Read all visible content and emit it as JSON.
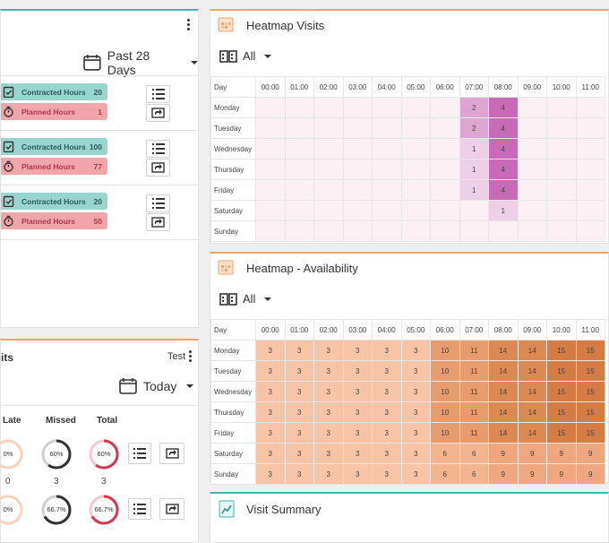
{
  "hours_card": {
    "period": "Past 28 Days",
    "rows": [
      {
        "contracted_label": "Contracted Hours",
        "contracted_value": "20",
        "planned_label": "Planned Hours",
        "planned_value": "1"
      },
      {
        "contracted_label": "Contracted Hours",
        "contracted_value": "100",
        "planned_label": "Planned Hours",
        "planned_value": "77"
      },
      {
        "contracted_label": "Contracted Hours",
        "contracted_value": "20",
        "planned_label": "Planned Hours",
        "planned_value": "50"
      }
    ]
  },
  "visits_card": {
    "title_fragment": "its",
    "menu_label": "Test",
    "period": "Today",
    "columns": [
      "Late",
      "Missed",
      "Total"
    ],
    "rows": [
      {
        "late": "0%",
        "missed": "60%",
        "total": "60%",
        "late_count": "0",
        "missed_count": "3",
        "total_count": "3",
        "late_fraction": 0.0,
        "missed_fraction": 0.6,
        "total_fraction": 0.6
      },
      {
        "late": "0%",
        "missed": "66.7%",
        "total": "66.7%",
        "late_fraction": 0.0,
        "missed_fraction": 0.667,
        "total_fraction": 0.667
      }
    ]
  },
  "heatmap_visits": {
    "title": "Heatmap Visits",
    "filter": "All",
    "day_header": "Day",
    "hours": [
      "00:00",
      "01:00",
      "02:00",
      "03:00",
      "04:00",
      "05:00",
      "06:00",
      "07:00",
      "08:00",
      "09:00",
      "10:00",
      "11:00"
    ],
    "days": [
      "Monday",
      "Tuesday",
      "Wednesday",
      "Thursday",
      "Friday",
      "Saturday",
      "Sunday"
    ],
    "values": [
      [
        "",
        "",
        "",
        "",
        "",
        "",
        "",
        "2",
        "4",
        "",
        "",
        ""
      ],
      [
        "",
        "",
        "",
        "",
        "",
        "",
        "",
        "2",
        "4",
        "",
        "",
        ""
      ],
      [
        "",
        "",
        "",
        "",
        "",
        "",
        "",
        "1",
        "4",
        "",
        "",
        ""
      ],
      [
        "",
        "",
        "",
        "",
        "",
        "",
        "",
        "1",
        "4",
        "",
        "",
        ""
      ],
      [
        "",
        "",
        "",
        "",
        "",
        "",
        "",
        "1",
        "4",
        "",
        "",
        ""
      ],
      [
        "",
        "",
        "",
        "",
        "",
        "",
        "",
        "",
        "1",
        "",
        "",
        ""
      ],
      [
        "",
        "",
        "",
        "",
        "",
        "",
        "",
        "",
        "",
        "",
        "",
        ""
      ]
    ]
  },
  "heatmap_availability": {
    "title": "Heatmap - Availability",
    "filter": "All",
    "day_header": "Day",
    "hours": [
      "00:00",
      "01:00",
      "02:00",
      "03:00",
      "04:00",
      "05:00",
      "06:00",
      "07:00",
      "08:00",
      "09:00",
      "10:00",
      "11:00"
    ],
    "days": [
      "Monday",
      "Tuesday",
      "Wednesday",
      "Thursday",
      "Friday",
      "Saturday",
      "Sunday"
    ],
    "values": [
      [
        "3",
        "3",
        "3",
        "3",
        "3",
        "3",
        "10",
        "11",
        "14",
        "14",
        "15",
        "15"
      ],
      [
        "3",
        "3",
        "3",
        "3",
        "3",
        "3",
        "10",
        "11",
        "14",
        "14",
        "15",
        "15"
      ],
      [
        "3",
        "3",
        "3",
        "3",
        "3",
        "3",
        "10",
        "11",
        "14",
        "14",
        "15",
        "15"
      ],
      [
        "3",
        "3",
        "3",
        "3",
        "3",
        "3",
        "10",
        "11",
        "14",
        "14",
        "15",
        "15"
      ],
      [
        "3",
        "3",
        "3",
        "3",
        "3",
        "3",
        "10",
        "11",
        "14",
        "14",
        "15",
        "15"
      ],
      [
        "3",
        "3",
        "3",
        "3",
        "3",
        "3",
        "6",
        "6",
        "9",
        "9",
        "9",
        "9"
      ],
      [
        "3",
        "3",
        "3",
        "3",
        "3",
        "3",
        "6",
        "6",
        "9",
        "9",
        "9",
        "9"
      ]
    ]
  },
  "visit_summary": {
    "title": "Visit Summary"
  },
  "colors": {
    "teal": "#46b5ad",
    "orange": "#f0a36a",
    "visits_base": "#fbf0f4",
    "avail_base": "#f8c4a6"
  }
}
